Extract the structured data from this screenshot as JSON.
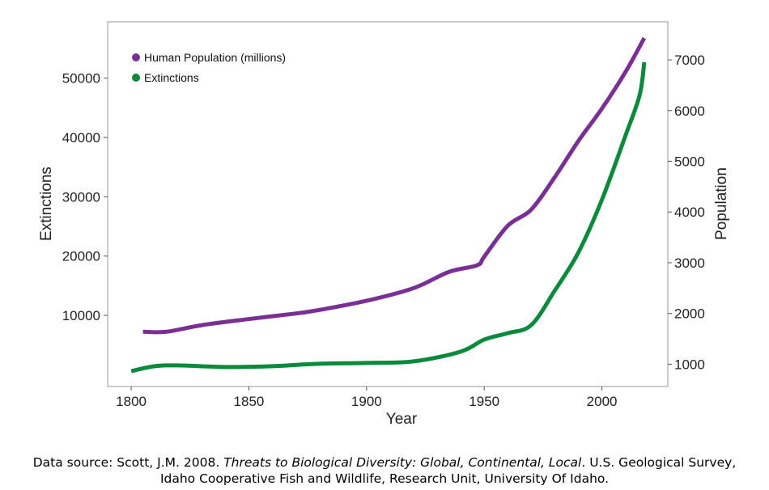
{
  "chart_data": {
    "type": "line",
    "xlabel": "Year",
    "ylabel_left": "Extinctions",
    "ylabel_right": "Population",
    "xlim": [
      1790,
      2028
    ],
    "ylim_left": [
      -2000,
      59500
    ],
    "ylim_right": [
      560,
      7750
    ],
    "xticks": [
      1800,
      1850,
      1900,
      1950,
      2000
    ],
    "yticks_left": [
      10000,
      20000,
      30000,
      40000,
      50000
    ],
    "yticks_right": [
      1000,
      2000,
      3000,
      4000,
      5000,
      6000,
      7000
    ],
    "grid": false,
    "legend_placement": "top-left",
    "series": [
      {
        "name": "Human Population (millions)",
        "axis": "right",
        "color": "#7a2f96",
        "x": [
          1805,
          1815,
          1830,
          1850,
          1870,
          1880,
          1900,
          1920,
          1935,
          1947,
          1950,
          1960,
          1970,
          1980,
          1990,
          2000,
          2010,
          2018
        ],
        "y": [
          1640,
          1640,
          1770,
          1890,
          2000,
          2070,
          2250,
          2500,
          2820,
          2950,
          3120,
          3730,
          4050,
          4690,
          5400,
          6040,
          6760,
          7430
        ]
      },
      {
        "name": "Extinctions",
        "axis": "left",
        "color": "#0b8a3b",
        "x": [
          1800,
          1810,
          1820,
          1840,
          1860,
          1880,
          1900,
          1920,
          1940,
          1950,
          1960,
          1970,
          1980,
          1990,
          2000,
          2010,
          2016,
          2018
        ],
        "y": [
          600,
          1430,
          1560,
          1290,
          1430,
          1840,
          1970,
          2240,
          3880,
          5920,
          7000,
          8370,
          14200,
          20600,
          29500,
          40300,
          47100,
          52700
        ]
      }
    ]
  },
  "footer": {
    "line1_a": "Data source: Scott, J.M. 2008. ",
    "line1_italic": "Threats to Biological Diversity: Global, Continental, Local",
    "line1_b": ". U.S. Geological Survey,",
    "line2": "Idaho Cooperative Fish and Wildlife, Research Unit, University Of Idaho."
  }
}
